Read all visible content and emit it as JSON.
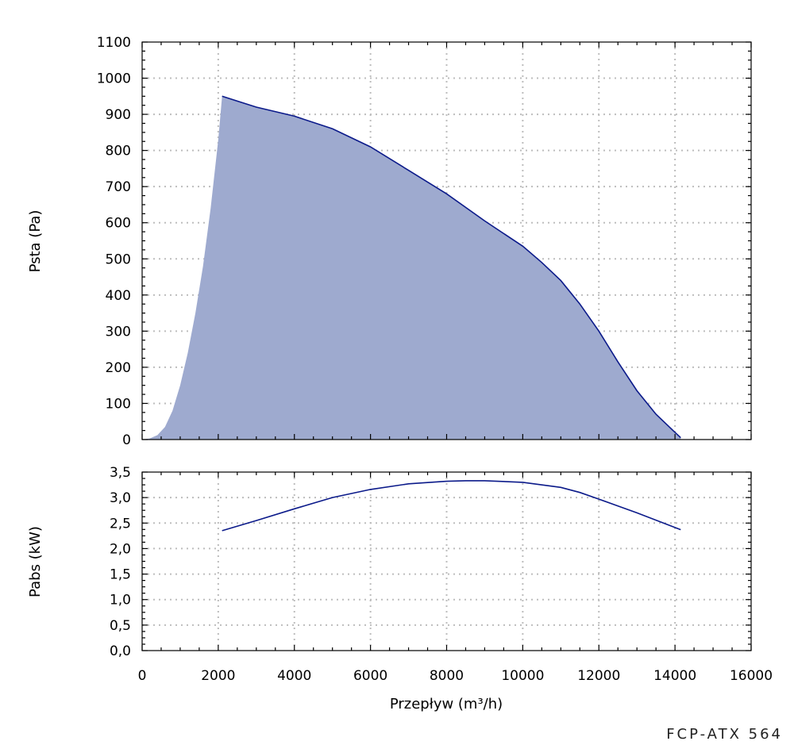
{
  "model_label": "FCP-ATX 564",
  "colors": {
    "curve": "#0b1a8a",
    "fill": "#9eaacf",
    "grid": "#bdbdbd",
    "axis": "#000000"
  },
  "chart_data": [
    {
      "type": "area",
      "ylabel": "Psta (Pa)",
      "xlim": [
        0,
        16000
      ],
      "ylim": [
        0,
        1100
      ],
      "x_ticks": [
        0,
        2000,
        4000,
        6000,
        8000,
        10000,
        12000,
        14000,
        16000
      ],
      "y_ticks": [
        0,
        100,
        200,
        300,
        400,
        500,
        600,
        700,
        800,
        900,
        1000,
        1100
      ],
      "y_tick_labels": [
        "0",
        "100",
        "200",
        "300",
        "400",
        "500",
        "600",
        "700",
        "800",
        "900",
        "1000",
        "1100"
      ],
      "grid": true,
      "series": [
        {
          "role": "shaded-region",
          "x": [
            0,
            200,
            400,
            600,
            800,
            1000,
            1200,
            1400,
            1600,
            1800,
            2000,
            2100,
            3000,
            4000,
            5000,
            6000,
            7000,
            8000,
            9000,
            10000,
            10500,
            11000,
            11500,
            12000,
            12500,
            13000,
            13500,
            14000,
            14150
          ],
          "y": [
            0,
            3,
            12,
            35,
            80,
            150,
            240,
            350,
            480,
            640,
            830,
            950,
            920,
            895,
            860,
            810,
            745,
            680,
            605,
            535,
            490,
            440,
            375,
            300,
            215,
            135,
            70,
            20,
            5
          ]
        },
        {
          "role": "curve",
          "x": [
            2100,
            3000,
            4000,
            5000,
            6000,
            7000,
            8000,
            9000,
            10000,
            10500,
            11000,
            11500,
            12000,
            12500,
            13000,
            13500,
            14000,
            14150
          ],
          "y": [
            950,
            920,
            895,
            860,
            810,
            745,
            680,
            605,
            535,
            490,
            440,
            375,
            300,
            215,
            135,
            70,
            20,
            5
          ]
        }
      ]
    },
    {
      "type": "line",
      "ylabel": "Pabs (kW)",
      "xlabel": "Przepływ (m³/h)",
      "xlim": [
        0,
        16000
      ],
      "ylim": [
        0,
        3.5
      ],
      "x_ticks": [
        0,
        2000,
        4000,
        6000,
        8000,
        10000,
        12000,
        14000,
        16000
      ],
      "x_tick_labels": [
        "0",
        "2000",
        "4000",
        "6000",
        "8000",
        "10000",
        "12000",
        "14000",
        "16000"
      ],
      "y_ticks": [
        0,
        0.5,
        1.0,
        1.5,
        2.0,
        2.5,
        3.0,
        3.5
      ],
      "y_tick_labels": [
        "0,0",
        "0,5",
        "1,0",
        "1,5",
        "2,0",
        "2,5",
        "3,0",
        "3,5"
      ],
      "grid": true,
      "series": [
        {
          "x": [
            2100,
            3000,
            4000,
            5000,
            6000,
            7000,
            8000,
            8500,
            9000,
            10000,
            11000,
            11500,
            12000,
            13000,
            14150
          ],
          "y": [
            2.35,
            2.55,
            2.78,
            3.0,
            3.16,
            3.27,
            3.32,
            3.33,
            3.33,
            3.3,
            3.2,
            3.1,
            2.97,
            2.7,
            2.37
          ]
        }
      ]
    }
  ]
}
